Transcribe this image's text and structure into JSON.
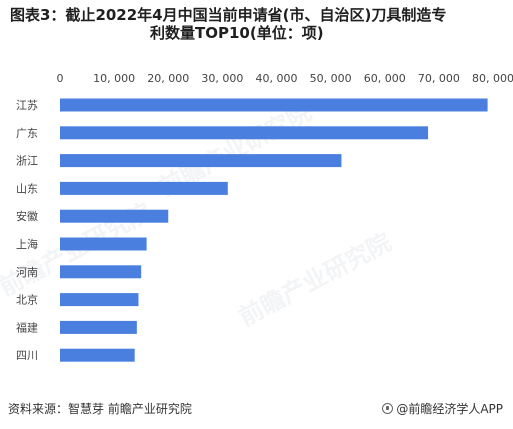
{
  "title_line1": "图表3：截止2022年4月中国当前申请省(市、自治区)刀具制造专",
  "title_line2": "利数量TOP10(单位：项)",
  "source_left": "资料来源：智慧芽 前瞻产业研究院",
  "source_right": "@前瞻经济学人APP",
  "watermark_text": "前瞻产业研究院",
  "colors": {
    "bar": "#4a7fe0",
    "axis_text": "#444444",
    "grid": "#e6e6e6"
  },
  "chart_data": {
    "type": "bar",
    "orientation": "horizontal",
    "categories": [
      "江苏",
      "广东",
      "浙江",
      "山东",
      "安徽",
      "上海",
      "河南",
      "北京",
      "福建",
      "四川"
    ],
    "values": [
      79000,
      68000,
      52000,
      31000,
      20000,
      16000,
      15000,
      14500,
      14200,
      13800
    ],
    "xlim": [
      0,
      80000
    ],
    "xticks": [
      "0",
      "10, 000",
      "20, 000",
      "30, 000",
      "40, 000",
      "50, 000",
      "60, 000",
      "70, 000",
      "80, 000"
    ],
    "xtick_values": [
      0,
      10000,
      20000,
      30000,
      40000,
      50000,
      60000,
      70000,
      80000
    ],
    "xaxis_position": "top",
    "grid": false,
    "legend": "none"
  }
}
